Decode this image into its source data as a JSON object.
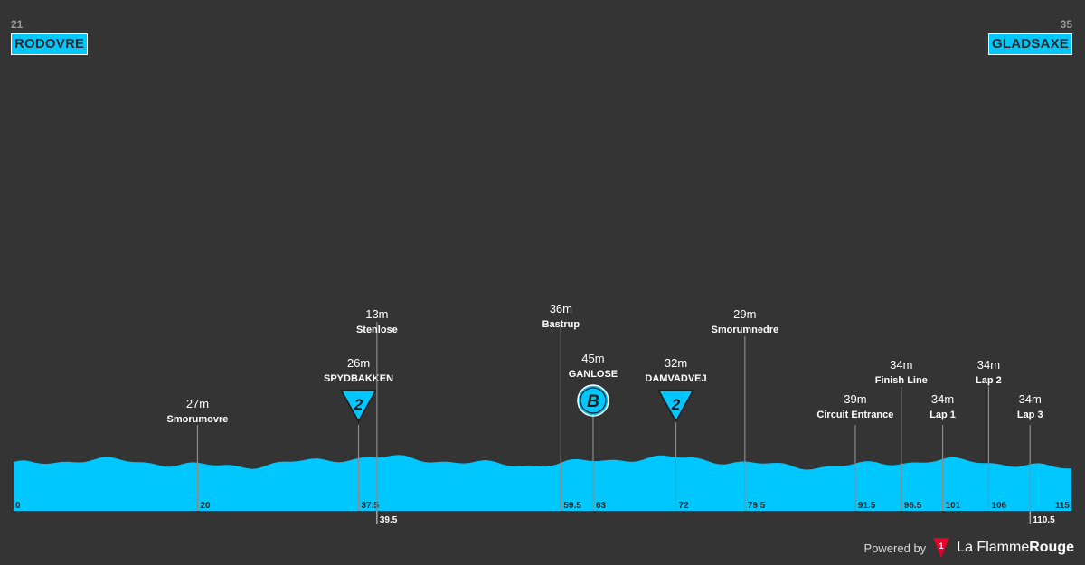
{
  "header": {
    "start_km": "21",
    "start_place": "RODOVRE",
    "end_km": "35",
    "end_place": "GLADSAXE"
  },
  "footer": {
    "powered_by": "Powered by",
    "brand_light": "La Flamme",
    "brand_bold": "Rouge",
    "brand_logo_number": "1"
  },
  "colors": {
    "profile_fill": "#00c8ff",
    "background": "#343434",
    "marker_line": "#8a8a8a"
  },
  "chart_data": {
    "type": "area",
    "xlim": [
      0,
      115
    ],
    "x_ticks": [
      "0",
      "20",
      "37.5",
      "39.5",
      "59.5",
      "63",
      "72",
      "79.5",
      "91.5",
      "96.5",
      "101",
      "106",
      "110.5",
      "115"
    ],
    "markers": [
      {
        "km": 20,
        "km_label": "20",
        "elevation": "27m",
        "name": "Smorumovre",
        "icon": ""
      },
      {
        "km": 37.5,
        "km_label": "37.5",
        "elevation": "26m",
        "name": "SPYDBAKKEN",
        "icon": "climb-cat-2",
        "icon_text": "2"
      },
      {
        "km": 39.5,
        "km_label": "39.5",
        "elevation": "13m",
        "name": "Stenlose",
        "icon": "",
        "tick_below": true
      },
      {
        "km": 59.5,
        "km_label": "59.5",
        "elevation": "36m",
        "name": "Bastrup",
        "icon": ""
      },
      {
        "km": 63,
        "km_label": "63",
        "elevation": "45m",
        "name": "GANLOSE",
        "icon": "bonus-sprint",
        "icon_text": "B"
      },
      {
        "km": 72,
        "km_label": "72",
        "elevation": "32m",
        "name": "DAMVADVEJ",
        "icon": "climb-cat-2",
        "icon_text": "2"
      },
      {
        "km": 79.5,
        "km_label": "79.5",
        "elevation": "29m",
        "name": "Smorumnedre",
        "icon": ""
      },
      {
        "km": 91.5,
        "km_label": "91.5",
        "elevation": "39m",
        "name": "Circuit Entrance",
        "icon": ""
      },
      {
        "km": 96.5,
        "km_label": "96.5",
        "elevation": "34m",
        "name": "Finish Line",
        "icon": ""
      },
      {
        "km": 101,
        "km_label": "101",
        "elevation": "34m",
        "name": "Lap 1",
        "icon": ""
      },
      {
        "km": 106,
        "km_label": "106",
        "elevation": "34m",
        "name": "Lap 2",
        "icon": ""
      },
      {
        "km": 110.5,
        "km_label": "110.5",
        "elevation": "34m",
        "name": "Lap 3",
        "icon": "",
        "tick_below": true
      },
      {
        "km": 115,
        "km_label": "115",
        "elevation": "",
        "name": "",
        "icon": ""
      }
    ],
    "start_label": "0"
  }
}
